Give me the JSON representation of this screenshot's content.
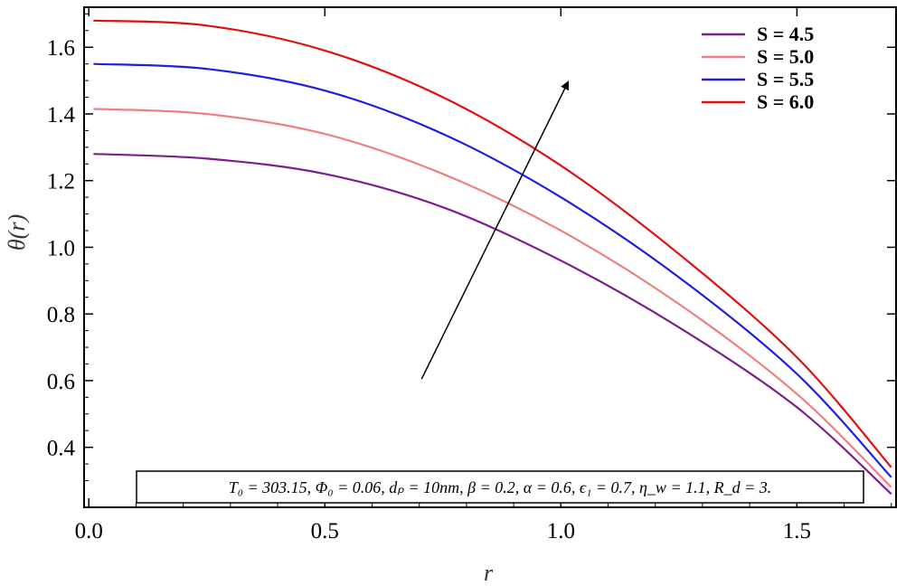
{
  "chart_data": {
    "type": "line",
    "xlabel": "r",
    "ylabel": "θ(r)",
    "xlim": [
      -0.01,
      1.71
    ],
    "ylim": [
      0.22,
      1.72
    ],
    "xticks": [
      0.0,
      0.5,
      1.0,
      1.5
    ],
    "xtick_labels": [
      "0.0",
      "0.5",
      "1.0",
      "1.5"
    ],
    "yticks": [
      0.4,
      0.6,
      0.8,
      1.0,
      1.2,
      1.4,
      1.6
    ],
    "ytick_labels": [
      "0.4",
      "0.6",
      "0.8",
      "1.0",
      "1.2",
      "1.4",
      "1.6"
    ],
    "grid": false,
    "legend_position": "top-right",
    "series": [
      {
        "name": "S = 4.5",
        "color": "#7b1f8f",
        "x": [
          0.01,
          0.25,
          0.5,
          0.75,
          1.0,
          1.25,
          1.5,
          1.7
        ],
        "y": [
          1.28,
          1.266,
          1.22,
          1.12,
          0.96,
          0.76,
          0.52,
          0.26
        ]
      },
      {
        "name": "S = 5.0",
        "color": "#f08080",
        "x": [
          0.01,
          0.25,
          0.5,
          0.75,
          1.0,
          1.25,
          1.5,
          1.7
        ],
        "y": [
          1.415,
          1.4,
          1.34,
          1.22,
          1.05,
          0.83,
          0.56,
          0.28
        ]
      },
      {
        "name": "S = 5.5",
        "color": "#1f1fe0",
        "x": [
          0.01,
          0.25,
          0.5,
          0.75,
          1.0,
          1.25,
          1.5,
          1.7
        ],
        "y": [
          1.55,
          1.535,
          1.47,
          1.34,
          1.15,
          0.91,
          0.62,
          0.31
        ]
      },
      {
        "name": "S = 6.0",
        "color": "#e01010",
        "x": [
          0.01,
          0.25,
          0.5,
          0.75,
          1.0,
          1.25,
          1.5,
          1.7
        ],
        "y": [
          1.68,
          1.665,
          1.59,
          1.45,
          1.245,
          0.98,
          0.67,
          0.34
        ]
      }
    ],
    "annotation": {
      "arrow": {
        "from": [
          0.705,
          0.605
        ],
        "to": [
          1.015,
          1.495
        ]
      },
      "parameters_text": "T₀ = 303.15, Φ₀ = 0.06, dₚ = 10nm, β = 0.2, α = 0.6, ϵ₁ = 0.7, η_w = 1.1, R_d = 3."
    }
  }
}
